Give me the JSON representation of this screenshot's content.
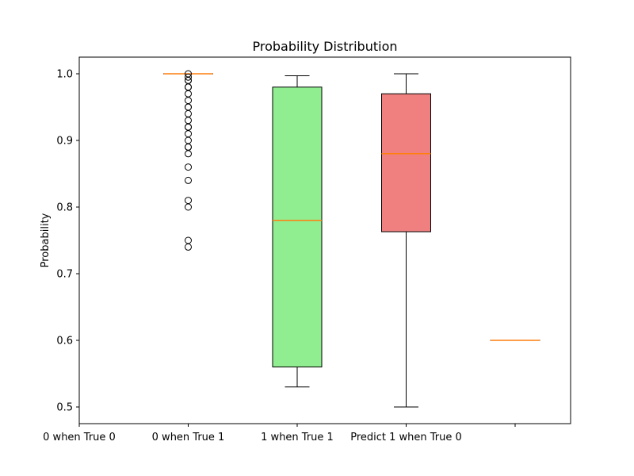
{
  "chart_data": {
    "type": "box",
    "title": "Probability Distribution",
    "xlabel": "",
    "ylabel": "Probability",
    "ylim": [
      0.475,
      1.025
    ],
    "yticks": [
      0.5,
      0.6,
      0.7,
      0.8,
      0.9,
      1.0
    ],
    "ytick_labels": [
      "0.5",
      "0.6",
      "0.7",
      "0.8",
      "0.9",
      "1.0"
    ],
    "categories": [
      "0 when True 0",
      "0 when True 1",
      "1 when True 1",
      "Predict 1 when True 0",
      ""
    ],
    "boxes": [
      {
        "category": "0 when True 0",
        "empty": true
      },
      {
        "category": "0 when True 1",
        "q1": 1.0,
        "median": 1.0,
        "q3": 1.0,
        "whisker_low": 1.0,
        "whisker_high": 1.0,
        "fill": "#ffffff",
        "outliers": [
          0.74,
          0.75,
          0.8,
          0.81,
          0.84,
          0.86,
          0.88,
          0.89,
          0.89,
          0.9,
          0.91,
          0.92,
          0.92,
          0.93,
          0.94,
          0.95,
          0.95,
          0.96,
          0.97,
          0.98,
          0.98,
          0.99,
          0.99,
          0.995,
          1.0
        ]
      },
      {
        "category": "1 when True 1",
        "q1": 0.56,
        "median": 0.78,
        "q3": 0.98,
        "whisker_low": 0.53,
        "whisker_high": 0.997,
        "fill": "#90ee90",
        "outliers": []
      },
      {
        "category": "Predict 1 when True 0",
        "q1": 0.763,
        "median": 0.88,
        "q3": 0.97,
        "whisker_low": 0.5,
        "whisker_high": 1.0,
        "fill": "#f08080",
        "outliers": []
      },
      {
        "category": "",
        "q1": 0.6,
        "median": 0.6,
        "q3": 0.6,
        "whisker_low": 0.6,
        "whisker_high": 0.6,
        "fill": "#ffffff",
        "outliers": []
      }
    ],
    "colors": {
      "median": "#ff7f0e",
      "edge": "#000000"
    },
    "grid": false,
    "legend": "none"
  }
}
